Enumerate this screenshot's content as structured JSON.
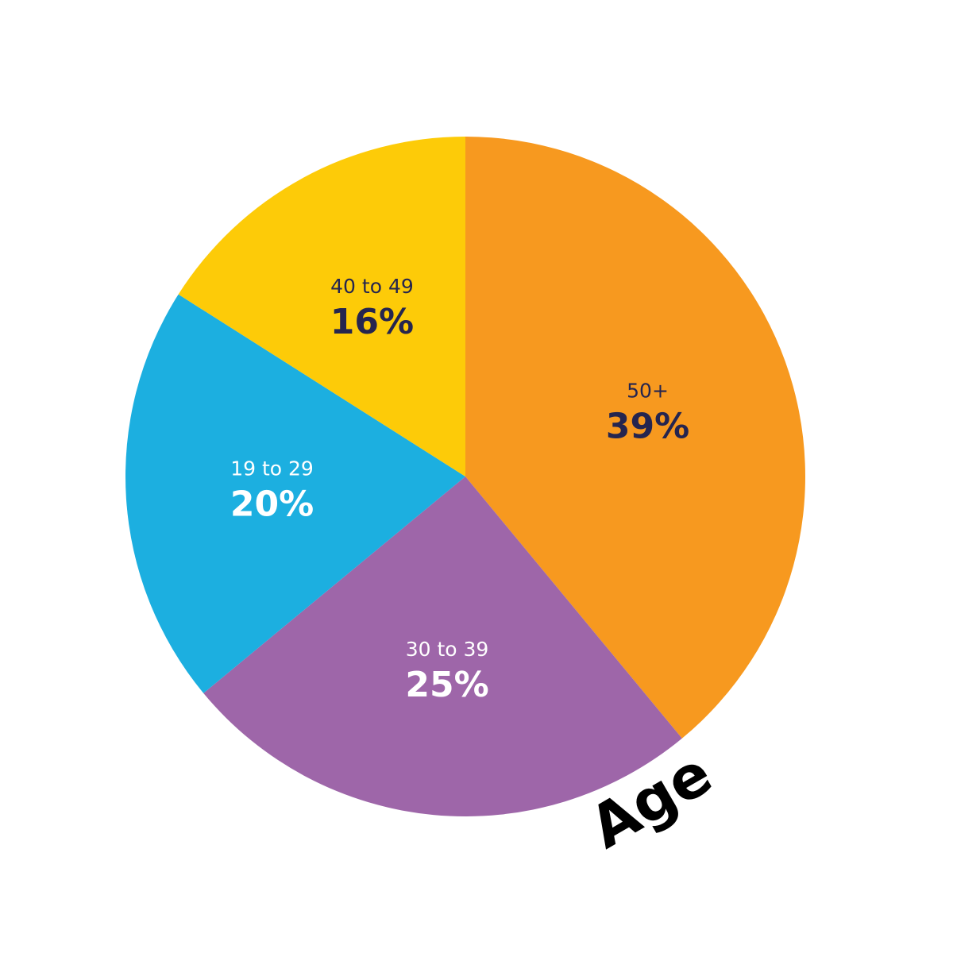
{
  "chart_data": {
    "type": "pie",
    "title": "Age",
    "categories": [
      "50+",
      "30 to 39",
      "19 to 29",
      "40 to 49"
    ],
    "values": [
      39,
      25,
      20,
      16
    ],
    "value_labels": [
      "39%",
      "25%",
      "20%",
      "16%"
    ],
    "colors": [
      "#f7991f",
      "#9e66a9",
      "#1cafe0",
      "#fdcb08"
    ],
    "label_colors": [
      "#25254f",
      "#ffffff",
      "#ffffff",
      "#25254f"
    ]
  }
}
